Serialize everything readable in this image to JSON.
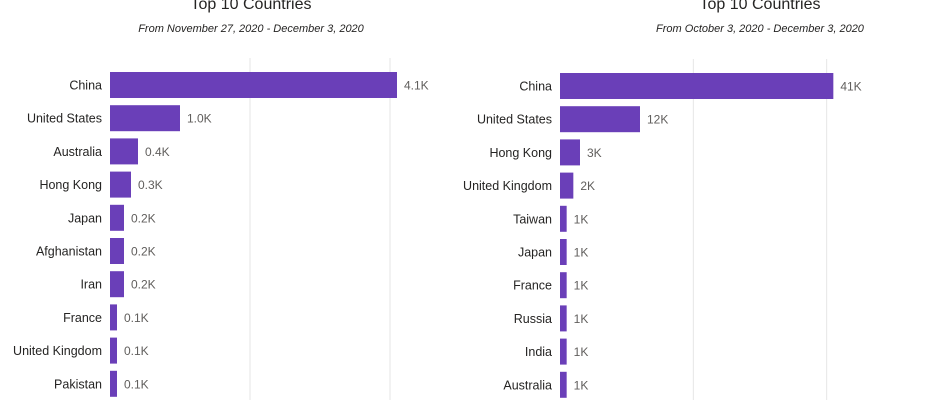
{
  "chart_data": [
    {
      "type": "bar",
      "orientation": "horizontal",
      "title": "Top 10 Countries",
      "subtitle": "From November 27, 2020 - December 3, 2020",
      "categories": [
        "China",
        "United States",
        "Australia",
        "Hong Kong",
        "Japan",
        "Afghanistan",
        "Iran",
        "France",
        "United Kingdom",
        "Pakistan"
      ],
      "values": [
        4.1,
        1.0,
        0.4,
        0.3,
        0.2,
        0.2,
        0.2,
        0.1,
        0.1,
        0.1
      ],
      "value_labels": [
        "4.1K",
        "1.0K",
        "0.4K",
        "0.3K",
        "0.2K",
        "0.2K",
        "0.2K",
        "0.1K",
        "0.1K",
        "0.1K"
      ],
      "value_unit": "thousands",
      "xlim": [
        0,
        5
      ],
      "grid": true,
      "bar_color": "#6a3fb8"
    },
    {
      "type": "bar",
      "orientation": "horizontal",
      "title": "Top 10 Countries",
      "subtitle": "From October 3, 2020 - December 3, 2020",
      "categories": [
        "China",
        "United States",
        "Hong Kong",
        "United Kingdom",
        "Taiwan",
        "Japan",
        "France",
        "Russia",
        "India",
        "Australia"
      ],
      "values": [
        41,
        12,
        3,
        2,
        1,
        1,
        1,
        1,
        1,
        1
      ],
      "value_labels": [
        "41K",
        "12K",
        "3K",
        "2K",
        "1K",
        "1K",
        "1K",
        "1K",
        "1K",
        "1K"
      ],
      "value_unit": "thousands",
      "xlim": [
        0,
        57
      ],
      "grid": true,
      "bar_color": "#6a3fb8"
    }
  ]
}
